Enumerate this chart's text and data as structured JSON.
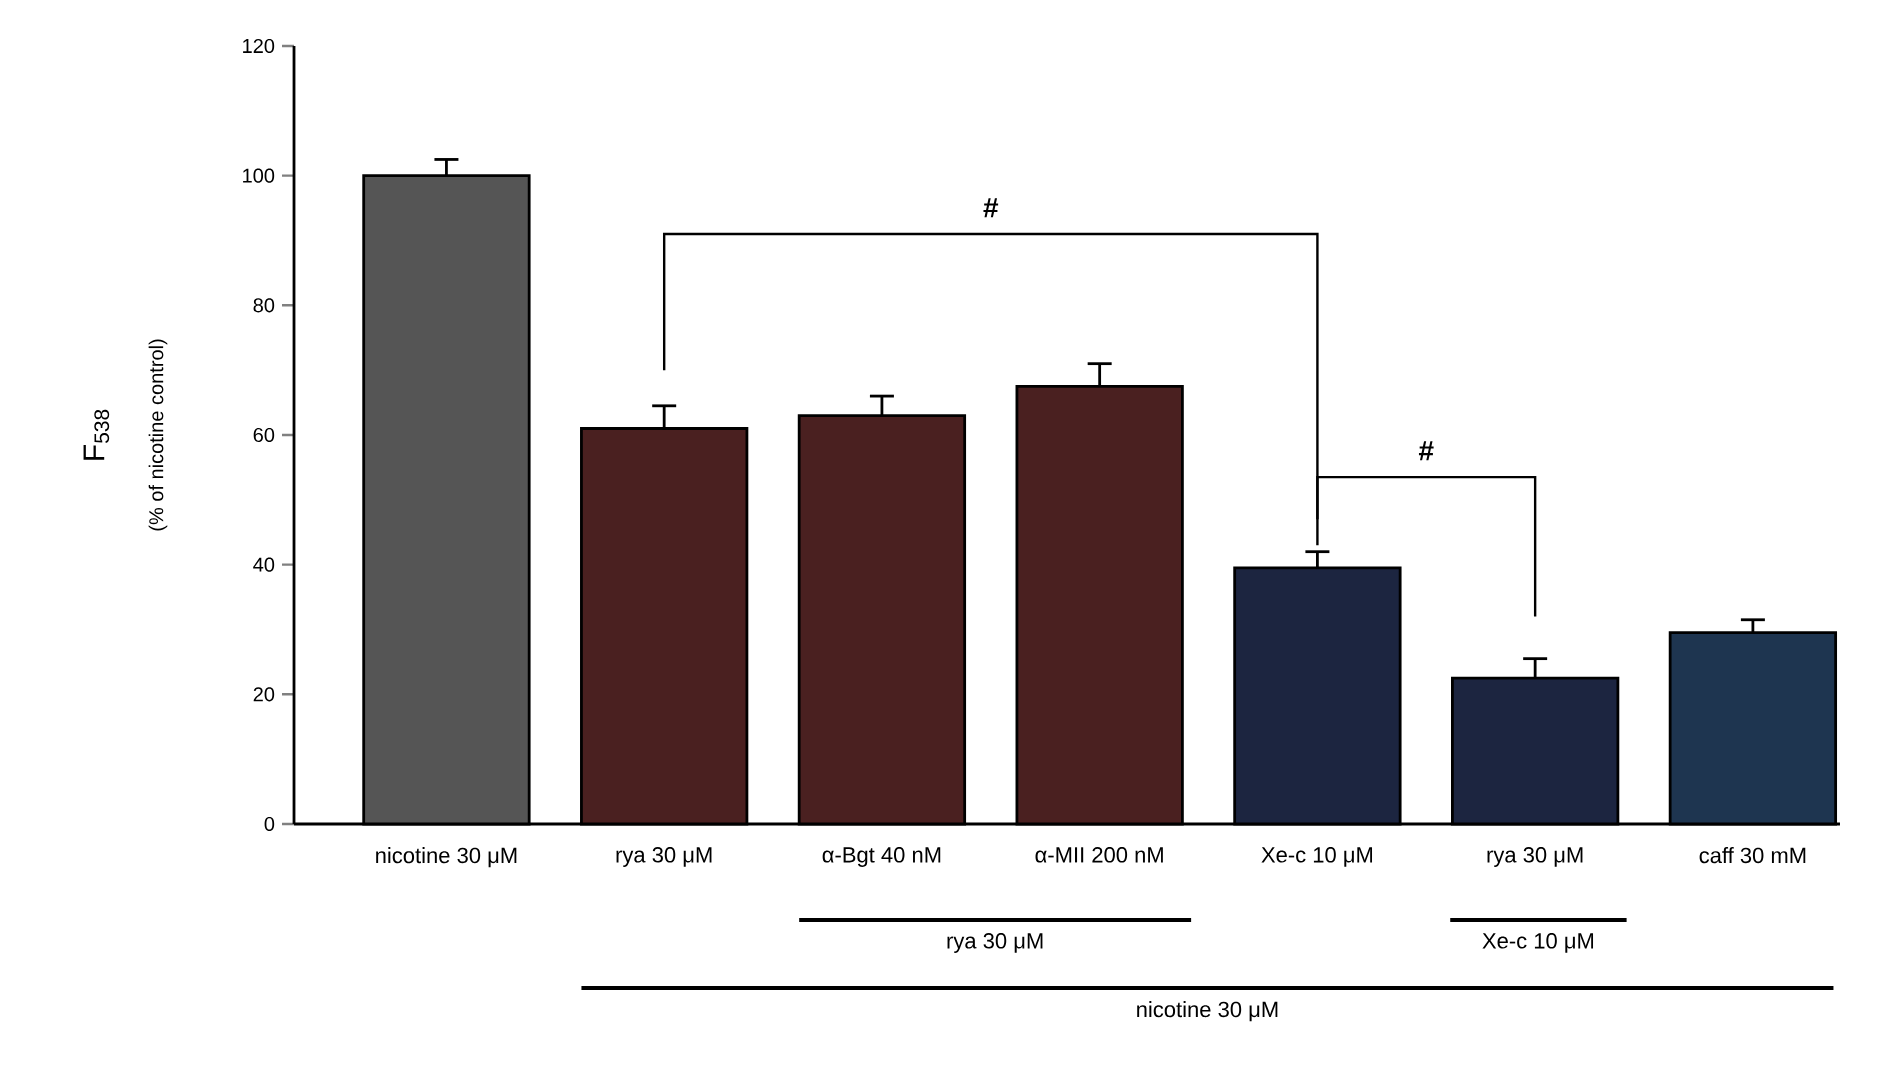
{
  "chart_data": {
    "type": "bar",
    "ylabel": "F$_{538}$",
    "categories": [
      "nicotine 30 μM",
      "rya 30 μM",
      "α-Bgt 40 nM",
      "α-MII 200 nM",
      "Xe-c 10 μM",
      "rya 30 μM",
      "caff 30 mM"
    ],
    "values": [
      100,
      61,
      63,
      67.5,
      39.5,
      22.5,
      29.5
    ],
    "errors": [
      2.5,
      3.5,
      3,
      3.5,
      2.5,
      3,
      2
    ],
    "colors": [
      "#555555",
      "#4a2020",
      "#4a2020",
      "#4a2020",
      "#1c2540",
      "#1c2540",
      "#1e3550"
    ],
    "ylim": [
      0,
      120
    ],
    "yticks": [
      0,
      20,
      40,
      60,
      80,
      100,
      120
    ],
    "annotations": [
      "(% of nicotine control)",
      "#",
      "#",
      "rya 30 μM",
      "Xe-c 10 μM",
      "nicotine 30 μM"
    ]
  }
}
